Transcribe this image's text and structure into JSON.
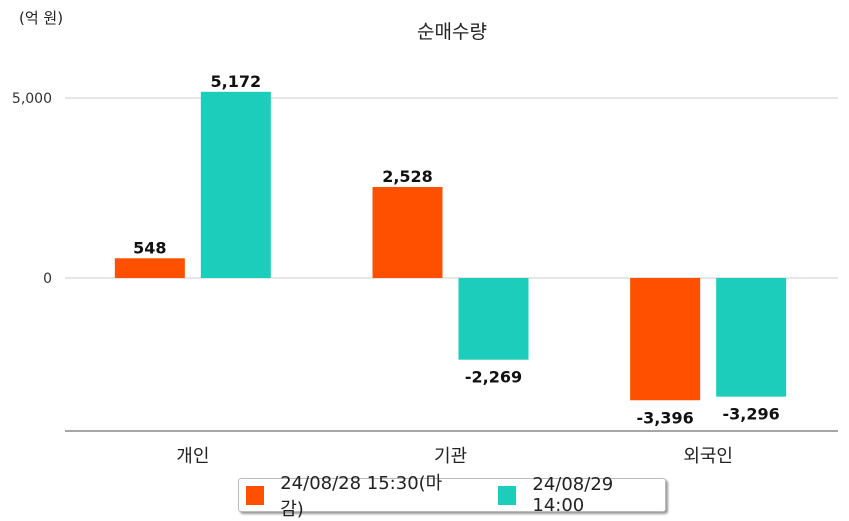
{
  "chart_data": {
    "type": "bar",
    "title": "순매수량",
    "unit_label": "(억 원)",
    "categories": [
      "개인",
      "기관",
      "외국인"
    ],
    "series": [
      {
        "name": "24/08/28 15:30(마감)",
        "color": "#ff5000",
        "values": [
          548,
          2528,
          -3396
        ],
        "labels": [
          "548",
          "2,528",
          "-3,396"
        ]
      },
      {
        "name": "24/08/29 14:00",
        "color": "#1dcdbb",
        "values": [
          5172,
          -2269,
          -3296
        ],
        "labels": [
          "5,172",
          "-2,269",
          "-3,296"
        ]
      }
    ],
    "yticks": [
      0,
      5000
    ],
    "ytick_labels": [
      "0",
      "5,000"
    ],
    "ylim": [
      -4250,
      5000
    ],
    "grid": true,
    "legend": "bottom"
  }
}
